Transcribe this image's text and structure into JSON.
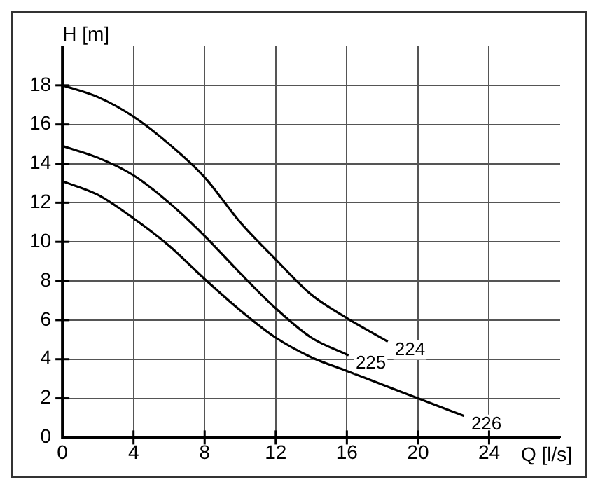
{
  "chart_data": {
    "type": "line",
    "xlabel": "Q [l/s]",
    "ylabel": "H [m]",
    "xlim": [
      0,
      28
    ],
    "xticks": [
      0,
      4,
      8,
      12,
      16,
      20,
      24
    ],
    "ylim": [
      0,
      20
    ],
    "yticks": [
      0,
      2,
      4,
      6,
      8,
      10,
      12,
      14,
      16,
      18
    ],
    "grid": true,
    "legend": false,
    "marker": "none",
    "line_style": "solid",
    "series": [
      {
        "name": "224",
        "color": "#000000",
        "x": [
          0,
          2,
          4,
          6,
          8,
          10,
          12,
          14,
          16,
          18.3
        ],
        "values": [
          18,
          17.4,
          16.4,
          15,
          13.3,
          11,
          9.1,
          7.3,
          6.1,
          4.9
        ]
      },
      {
        "name": "225",
        "color": "#000000",
        "x": [
          0,
          2,
          4,
          6,
          8,
          10,
          12,
          14,
          16.1
        ],
        "values": [
          14.9,
          14.3,
          13.4,
          12,
          10.3,
          8.4,
          6.6,
          5.1,
          4.2
        ]
      },
      {
        "name": "226",
        "color": "#000000",
        "x": [
          0,
          2,
          4,
          6,
          8,
          10,
          12,
          14,
          16,
          18,
          20,
          22.6
        ],
        "values": [
          13.1,
          12.4,
          11.2,
          9.8,
          8.1,
          6.5,
          5.1,
          4.1,
          3.4,
          2.7,
          2.0,
          1.1
        ]
      }
    ]
  }
}
